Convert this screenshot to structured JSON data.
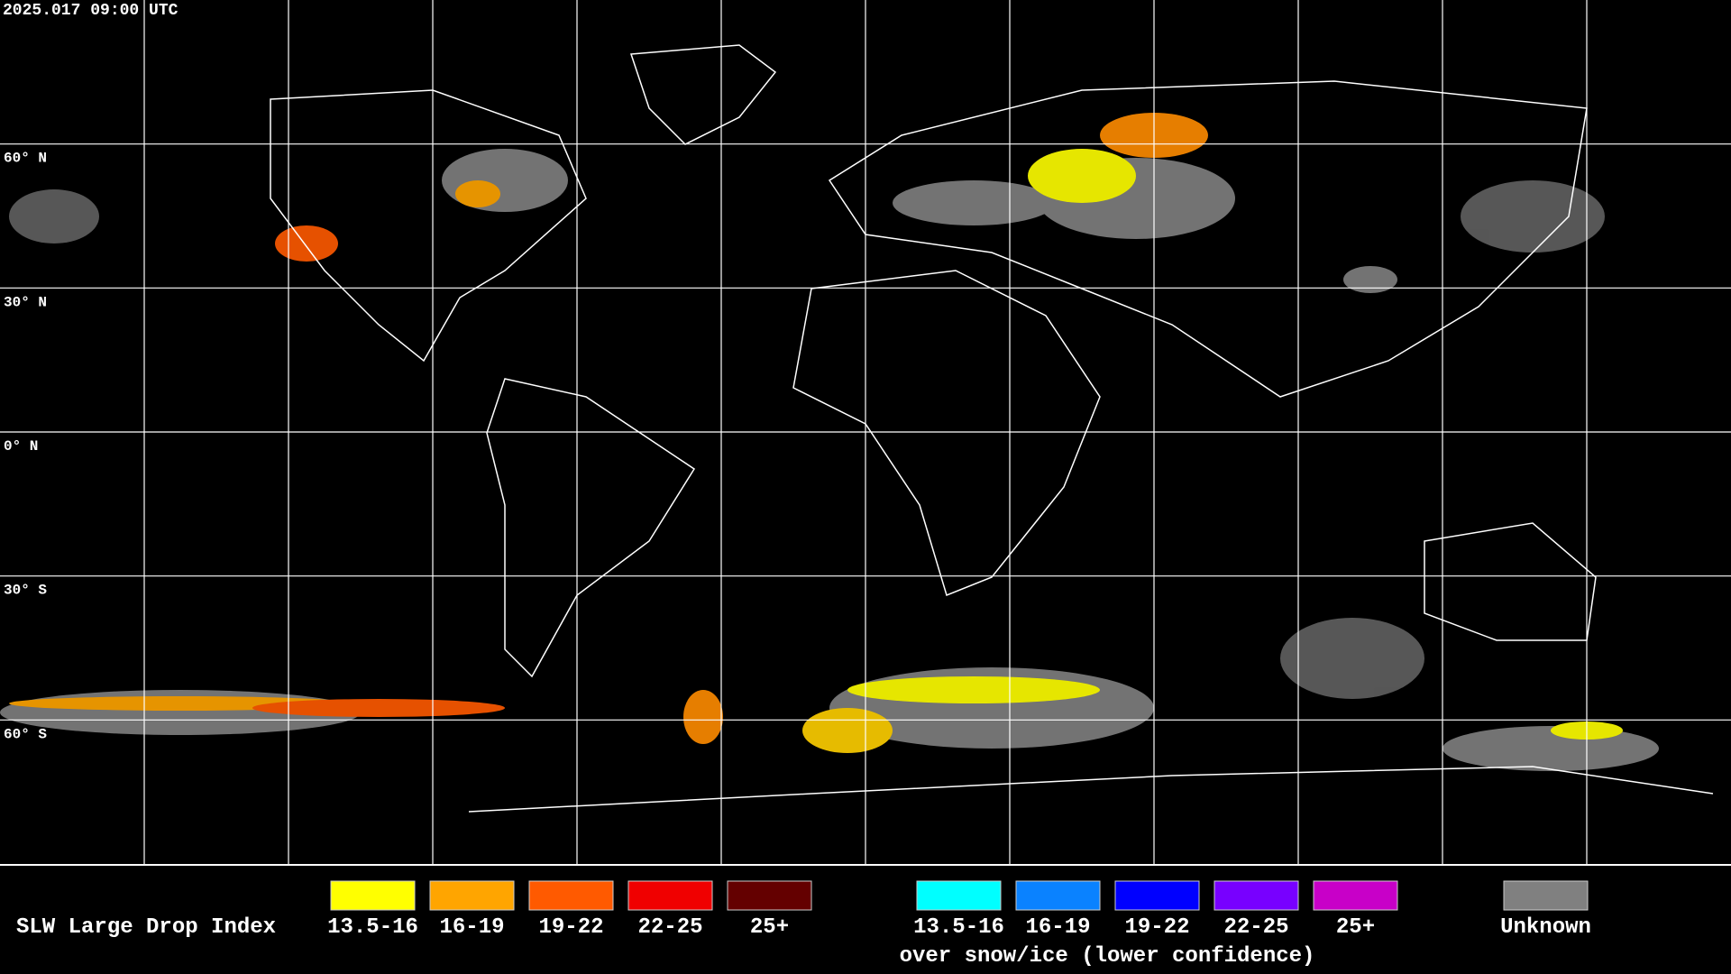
{
  "timestamp": "2025.017 09:00 UTC",
  "latitude_labels": [
    "60° N",
    "30° N",
    "0° N",
    "30° S",
    "60° S"
  ],
  "legend": {
    "title": "SLW Large Drop Index",
    "groups": [
      {
        "items": [
          {
            "label": "13.5-16",
            "color": "#ffff00"
          },
          {
            "label": "16-19",
            "color": "#ffa500"
          },
          {
            "label": "19-22",
            "color": "#ff5a00"
          },
          {
            "label": "22-25",
            "color": "#f00000"
          },
          {
            "label": "25+",
            "color": "#640000"
          }
        ]
      },
      {
        "items": [
          {
            "label": "13.5-16",
            "color": "#00ffff"
          },
          {
            "label": "16-19",
            "color": "#0a82ff"
          },
          {
            "label": "19-22",
            "color": "#0000ff"
          },
          {
            "label": "22-25",
            "color": "#7800ff"
          },
          {
            "label": "25+",
            "color": "#c800c8"
          }
        ],
        "note": "over snow/ice (lower confidence)"
      }
    ],
    "unknown": {
      "label": "Unknown",
      "color": "#808080"
    }
  }
}
